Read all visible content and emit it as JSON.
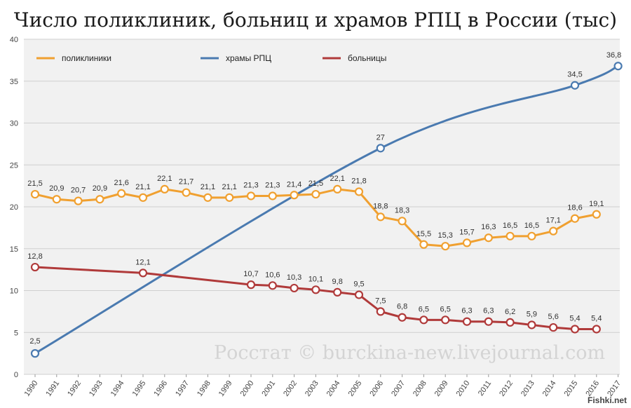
{
  "title": "Число поликлиник, больниц и храмов РПЦ в России (тыс)",
  "watermark": "Росстат © burckina-new.livejournal.com",
  "site_mark": "Fishki.net",
  "chart_data": {
    "type": "line",
    "ylim": [
      0,
      40
    ],
    "yticks": [
      0,
      5,
      10,
      15,
      20,
      25,
      30,
      35,
      40
    ],
    "x": [
      1990,
      1991,
      1992,
      1993,
      1994,
      1995,
      1996,
      1997,
      1998,
      1999,
      2000,
      2001,
      2002,
      2003,
      2004,
      2005,
      2006,
      2007,
      2008,
      2009,
      2010,
      2011,
      2012,
      2013,
      2014,
      2015,
      2016,
      2017
    ],
    "legend_position": "top-left",
    "grid": true,
    "series": [
      {
        "name": "поликлиники",
        "color": "#f0a030",
        "x": [
          1990,
          1991,
          1992,
          1993,
          1994,
          1995,
          1996,
          1997,
          1998,
          1999,
          2000,
          2001,
          2002,
          2003,
          2004,
          2005,
          2006,
          2007,
          2008,
          2009,
          2010,
          2011,
          2012,
          2013,
          2014,
          2015,
          2016
        ],
        "values": [
          21.5,
          20.9,
          20.7,
          20.9,
          21.6,
          21.1,
          22.1,
          21.7,
          21.1,
          21.1,
          21.3,
          21.3,
          21.4,
          21.5,
          22.1,
          21.8,
          18.8,
          18.3,
          15.5,
          15.3,
          15.7,
          16.3,
          16.5,
          16.5,
          17.1,
          18.6,
          19.1
        ],
        "labels": [
          "21,5",
          "20,9",
          "20,7",
          "20,9",
          "21,6",
          "21,1",
          "22,1",
          "21,7",
          "21,1",
          "21,1",
          "21,3",
          "21,3",
          "21,4",
          "21,5",
          "22,1",
          "21,8",
          "18,8",
          "18,3",
          "15,5",
          "15,3",
          "15,7",
          "16,3",
          "16,5",
          "16,5",
          "17,1",
          "18,6",
          "19,1"
        ]
      },
      {
        "name": "храмы РПЦ",
        "color": "#4a7ab0",
        "x": [
          1990,
          2006,
          2015,
          2017
        ],
        "values": [
          2.5,
          27,
          34.5,
          36.8
        ],
        "labels": [
          "2,5",
          "27",
          "34,5",
          "36,8"
        ]
      },
      {
        "name": "больницы",
        "color": "#b03a3a",
        "x": [
          1990,
          1995,
          2000,
          2001,
          2002,
          2003,
          2004,
          2005,
          2006,
          2007,
          2008,
          2009,
          2010,
          2011,
          2012,
          2013,
          2014,
          2015,
          2016
        ],
        "values": [
          12.8,
          12.1,
          10.7,
          10.6,
          10.3,
          10.1,
          9.8,
          9.5,
          7.5,
          6.8,
          6.5,
          6.5,
          6.3,
          6.3,
          6.2,
          5.9,
          5.6,
          5.4,
          5.4
        ],
        "labels": [
          "12,8",
          "12,1",
          "10,7",
          "10,6",
          "10,3",
          "10,1",
          "9,8",
          "9,5",
          "7,5",
          "6,8",
          "6,5",
          "6,5",
          "6,3",
          "6,3",
          "6,2",
          "5,9",
          "5,6",
          "5,4",
          "5,4"
        ]
      }
    ]
  }
}
